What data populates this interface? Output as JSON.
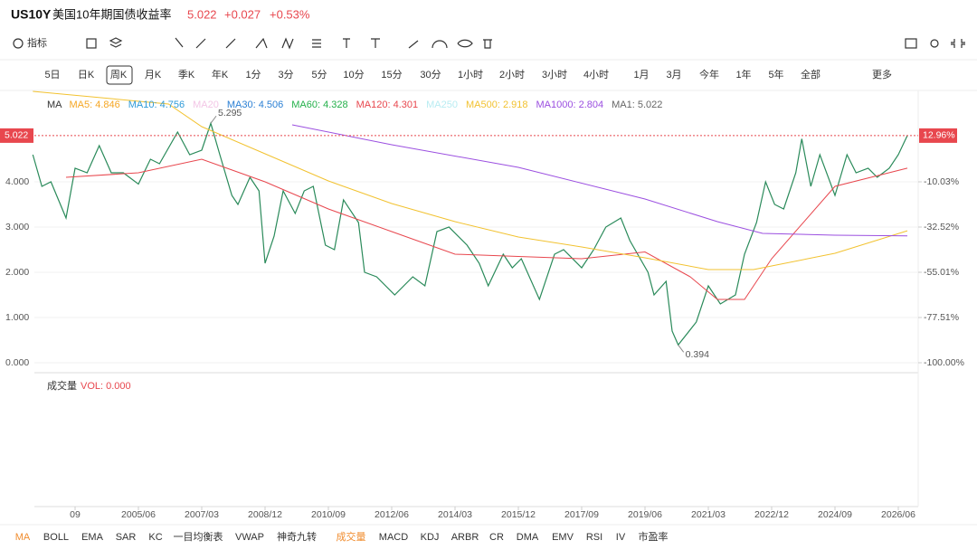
{
  "header": {
    "symbol": "US10Y",
    "name": "美国10年期国债收益率",
    "price": "5.022",
    "change": "+0.027",
    "change_pct": "+0.53%"
  },
  "toolbar": {
    "indicator": "指标"
  },
  "timeframes": [
    "5日",
    "日K",
    "周K",
    "月K",
    "季K",
    "年K",
    "1分",
    "3分",
    "5分",
    "10分",
    "15分",
    "30分",
    "1小时",
    "2小时",
    "3小时",
    "4小时",
    "1月",
    "3月",
    "今年",
    "1年",
    "5年",
    "全部",
    "更多"
  ],
  "bottom_indicators": [
    "MA",
    "BOLL",
    "EMA",
    "SAR",
    "KC",
    "一目均衡表",
    "VWAP",
    "神奇九转",
    "成交量",
    "MACD",
    "KDJ",
    "ARBR",
    "CR",
    "DMA",
    "EMV",
    "RSI",
    "IV",
    "市盈率"
  ],
  "volume_panel": {
    "title": "成交量",
    "value": "VOL: 0.000"
  },
  "chart_data": {
    "type": "line",
    "legend_title": "MA",
    "ma_legend": [
      {
        "label": "MA5: 4.846",
        "color": "#f5a623"
      },
      {
        "label": "MA10: 4.756",
        "color": "#2f9bd8"
      },
      {
        "label": "MA20",
        "color": "#f3c6e6"
      },
      {
        "label": "MA30: 4.506",
        "color": "#2a7fd4"
      },
      {
        "label": "MA60: 4.328",
        "color": "#23b04a"
      },
      {
        "label": "MA120: 4.301",
        "color": "#e8474e"
      },
      {
        "label": "MA250",
        "color": "#b8ecf2"
      },
      {
        "label": "MA500: 2.918",
        "color": "#f2c230"
      },
      {
        "label": "MA1000: 2.804",
        "color": "#9b4fe0"
      },
      {
        "label": "MA1: 5.022",
        "color": "#666666"
      }
    ],
    "series": [
      {
        "name": "US10Y",
        "color": "#2a8a5a",
        "x": [
          "2002/07",
          "2002/10",
          "2003/01",
          "2003/06",
          "2003/09",
          "2004/01",
          "2004/05",
          "2004/09",
          "2005/01",
          "2005/06",
          "2005/10",
          "2006/01",
          "2006/07",
          "2006/11",
          "2007/03",
          "2007/06",
          "2007/09",
          "2008/01",
          "2008/03",
          "2008/07",
          "2008/10",
          "2008/12",
          "2009/03",
          "2009/06",
          "2009/10",
          "2010/01",
          "2010/04",
          "2010/08",
          "2010/11",
          "2011/02",
          "2011/07",
          "2011/09",
          "2012/01",
          "2012/07",
          "2012/10",
          "2013/01",
          "2013/05",
          "2013/09",
          "2014/01",
          "2014/07",
          "2014/11",
          "2015/02",
          "2015/07",
          "2015/10",
          "2016/01",
          "2016/07",
          "2016/12",
          "2017/03",
          "2017/09",
          "2018/01",
          "2018/05",
          "2018/10",
          "2019/01",
          "2019/07",
          "2019/09",
          "2020/01",
          "2020/03",
          "2020/05",
          "2020/11",
          "2021/03",
          "2021/07",
          "2021/12",
          "2022/03",
          "2022/07",
          "2022/10",
          "2023/01",
          "2023/04",
          "2023/08",
          "2023/10",
          "2024/01",
          "2024/04",
          "2024/09",
          "2025/01",
          "2025/04",
          "2025/08",
          "2025/11",
          "2026/03",
          "2026/06",
          "2026/09"
        ],
        "values": [
          4.6,
          3.9,
          4.0,
          3.2,
          4.3,
          4.2,
          4.8,
          4.2,
          4.2,
          3.95,
          4.5,
          4.4,
          5.1,
          4.6,
          4.7,
          5.295,
          4.6,
          3.7,
          3.5,
          4.1,
          3.8,
          2.2,
          2.8,
          3.8,
          3.3,
          3.8,
          3.9,
          2.6,
          2.5,
          3.6,
          3.1,
          2.0,
          1.9,
          1.5,
          1.7,
          1.9,
          1.7,
          2.9,
          3.0,
          2.6,
          2.2,
          1.7,
          2.4,
          2.1,
          2.3,
          1.4,
          2.4,
          2.5,
          2.1,
          2.5,
          3.0,
          3.2,
          2.7,
          2.0,
          1.5,
          1.8,
          0.7,
          0.394,
          0.9,
          1.7,
          1.3,
          1.5,
          2.4,
          3.1,
          4.0,
          3.5,
          3.4,
          4.2,
          4.95,
          3.9,
          4.6,
          3.7,
          4.6,
          4.2,
          4.3,
          4.1,
          4.3,
          4.6,
          5.022
        ]
      },
      {
        "name": "MA120",
        "color": "#e8474e",
        "x": [
          "2003/06",
          "2005/06",
          "2007/03",
          "2008/12",
          "2010/09",
          "2012/06",
          "2014/03",
          "2015/12",
          "2017/09",
          "2019/06",
          "2020/09",
          "2021/06",
          "2022/03",
          "2022/12",
          "2024/09",
          "2026/09"
        ],
        "values": [
          4.1,
          4.2,
          4.5,
          4.0,
          3.4,
          2.9,
          2.4,
          2.35,
          2.3,
          2.45,
          1.9,
          1.4,
          1.4,
          2.3,
          3.9,
          4.301
        ]
      },
      {
        "name": "MA500",
        "color": "#f2c230",
        "x": [
          "2002/07",
          "2006/04",
          "2007/03",
          "2008/12",
          "2010/09",
          "2012/06",
          "2014/03",
          "2015/12",
          "2017/09",
          "2019/06",
          "2021/03",
          "2022/06",
          "2022/12",
          "2024/09",
          "2026/09"
        ],
        "values": [
          6.0,
          5.72,
          5.22,
          4.62,
          4.02,
          3.52,
          3.12,
          2.78,
          2.56,
          2.32,
          2.06,
          2.06,
          2.14,
          2.42,
          2.918
        ]
      },
      {
        "name": "MA1000",
        "color": "#9b4fe0",
        "x": [
          "2009/09",
          "2012/06",
          "2015/12",
          "2019/06",
          "2021/06",
          "2022/09",
          "2024/09",
          "2026/09"
        ],
        "values": [
          5.26,
          4.82,
          4.32,
          3.62,
          3.12,
          2.86,
          2.82,
          2.804
        ]
      }
    ],
    "annotations": [
      {
        "text": "5.295",
        "x": "2007/06",
        "y": 5.295
      },
      {
        "text": "0.394",
        "x": "2020/05",
        "y": 0.394
      }
    ],
    "last_pct": "12.96%",
    "ylim": [
      -0.18,
      6.0
    ],
    "yticks": [
      {
        "value": 0,
        "label": "0.000"
      },
      {
        "value": 1,
        "label": "1.000"
      },
      {
        "value": 2,
        "label": "2.000"
      },
      {
        "value": 3,
        "label": "3.000"
      },
      {
        "value": 4,
        "label": "4.000"
      }
    ],
    "y2lim": [
      -104.05,
      34.95
    ],
    "y2ticks": [
      {
        "value": -10.03,
        "label": "-10.03%"
      },
      {
        "value": -32.52,
        "label": "-32.52%"
      },
      {
        "value": -55.01,
        "label": "-55.01%"
      },
      {
        "value": -77.51,
        "label": "-77.51%"
      },
      {
        "value": -100,
        "label": "-100.00%"
      }
    ],
    "xticks": [
      {
        "value": "2003/09",
        "label": "09"
      },
      "2005/06",
      "2007/03",
      "2008/12",
      "2010/09",
      "2012/06",
      "2014/03",
      "2015/12",
      "2017/09",
      "2019/06",
      "2021/03",
      "2022/12",
      "2024/09",
      "2026/06"
    ]
  }
}
